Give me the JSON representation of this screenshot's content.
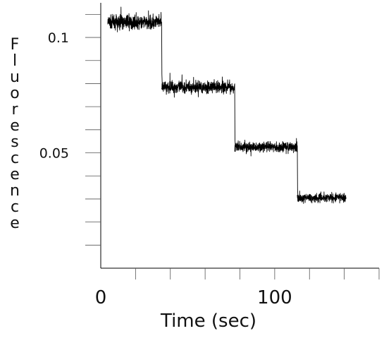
{
  "chart_data": {
    "type": "line",
    "title": "",
    "xlabel": "Time (sec)",
    "ylabel": "Fluorescence",
    "xlim": [
      0,
      160
    ],
    "ylim": [
      0.0,
      0.115
    ],
    "x_tick_labels": [
      {
        "value": 0,
        "label": "0"
      },
      {
        "value": 100,
        "label": "100"
      }
    ],
    "x_minor_ticks": [
      20,
      40,
      60,
      80,
      100,
      120,
      140,
      160
    ],
    "y_tick_labels": [
      {
        "value": 0.1,
        "label": "0.1"
      },
      {
        "value": 0.05,
        "label": "0.05"
      }
    ],
    "y_minor_ticks": [
      0.01,
      0.02,
      0.03,
      0.04,
      0.05,
      0.06,
      0.07,
      0.08,
      0.09,
      0.1,
      0.11
    ],
    "grid": false,
    "legend": "none",
    "series": [
      {
        "color": "#000000",
        "noisy": true,
        "segments": [
          {
            "x_start": 4,
            "x_end": 35,
            "y_mean": 0.1065,
            "noise": 0.0025
          },
          {
            "x_start": 35,
            "x_end": 77,
            "y_mean": 0.0785,
            "noise": 0.0022
          },
          {
            "x_start": 77,
            "x_end": 113,
            "y_mean": 0.0525,
            "noise": 0.0018
          },
          {
            "x_start": 113,
            "x_end": 141,
            "y_mean": 0.0305,
            "noise": 0.0016
          }
        ],
        "transitions": [
          {
            "x": 35,
            "from": 0.1065,
            "spike": 0.084,
            "to": 0.0785
          },
          {
            "x": 77,
            "from": 0.0785,
            "spike": 0.056,
            "to": 0.0525
          },
          {
            "x": 113,
            "from": 0.0525,
            "spike": 0.034,
            "to": 0.0305
          }
        ]
      }
    ]
  }
}
